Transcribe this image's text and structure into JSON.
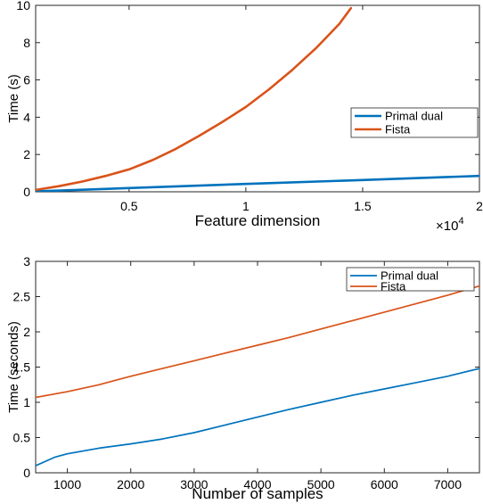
{
  "chart_data": [
    {
      "type": "line",
      "xlabel": "Feature dimension",
      "ylabel": "Time (s)",
      "x_exponent_label": "×10",
      "x_exponent_power": "4",
      "xlim": [
        0.1,
        2.0
      ],
      "ylim": [
        0,
        10
      ],
      "xticks": [
        0.5,
        1,
        1.5,
        2
      ],
      "xtick_labels": [
        "0.5",
        "1",
        "1.5",
        "2"
      ],
      "yticks": [
        0,
        2,
        4,
        6,
        8,
        10
      ],
      "ytick_labels": [
        "0",
        "2",
        "4",
        "6",
        "8",
        "10"
      ],
      "grid": false,
      "legend_position": "right",
      "series": [
        {
          "name": "Primal dual",
          "color": "#0072BD",
          "x": [
            0.1,
            0.5,
            1.0,
            1.5,
            2.0
          ],
          "y": [
            0.02,
            0.2,
            0.42,
            0.63,
            0.85
          ]
        },
        {
          "name": "Fista",
          "color": "#D95319",
          "x": [
            0.1,
            0.2,
            0.3,
            0.4,
            0.5,
            0.6,
            0.7,
            0.8,
            0.9,
            1.0,
            1.1,
            1.2,
            1.3,
            1.4,
            1.45
          ],
          "y": [
            0.1,
            0.3,
            0.55,
            0.85,
            1.2,
            1.7,
            2.3,
            3.0,
            3.75,
            4.55,
            5.5,
            6.55,
            7.7,
            9.0,
            9.85
          ]
        }
      ]
    },
    {
      "type": "line",
      "xlabel": "Number  of samples",
      "ylabel": "Time (seconds)",
      "xlim": [
        500,
        7500
      ],
      "ylim": [
        0,
        3
      ],
      "xticks": [
        1000,
        2000,
        3000,
        4000,
        5000,
        6000,
        7000
      ],
      "xtick_labels": [
        "1000",
        "2000",
        "3000",
        "4000",
        "5000",
        "6000",
        "7000"
      ],
      "yticks": [
        0,
        0.5,
        1,
        1.5,
        2,
        2.5,
        3
      ],
      "ytick_labels": [
        "0",
        "0.5",
        "1",
        "1.5",
        "2",
        "2.5",
        "3"
      ],
      "grid": false,
      "legend_position": "top-right",
      "series": [
        {
          "name": "Primal dual",
          "color": "#0072BD",
          "x": [
            500,
            800,
            1000,
            1500,
            2000,
            2500,
            3000,
            3500,
            4000,
            4500,
            5000,
            5500,
            6000,
            6500,
            7000,
            7500
          ],
          "y": [
            0.1,
            0.22,
            0.27,
            0.35,
            0.41,
            0.48,
            0.57,
            0.68,
            0.79,
            0.9,
            1.0,
            1.1,
            1.19,
            1.28,
            1.37,
            1.48
          ]
        },
        {
          "name": "Fista",
          "color": "#D95319",
          "x": [
            500,
            1000,
            1500,
            2000,
            2500,
            3000,
            3500,
            4000,
            4500,
            5000,
            5500,
            6000,
            6500,
            7000,
            7500
          ],
          "y": [
            1.07,
            1.15,
            1.25,
            1.37,
            1.48,
            1.59,
            1.7,
            1.81,
            1.92,
            2.04,
            2.16,
            2.28,
            2.4,
            2.52,
            2.65
          ]
        }
      ]
    }
  ]
}
